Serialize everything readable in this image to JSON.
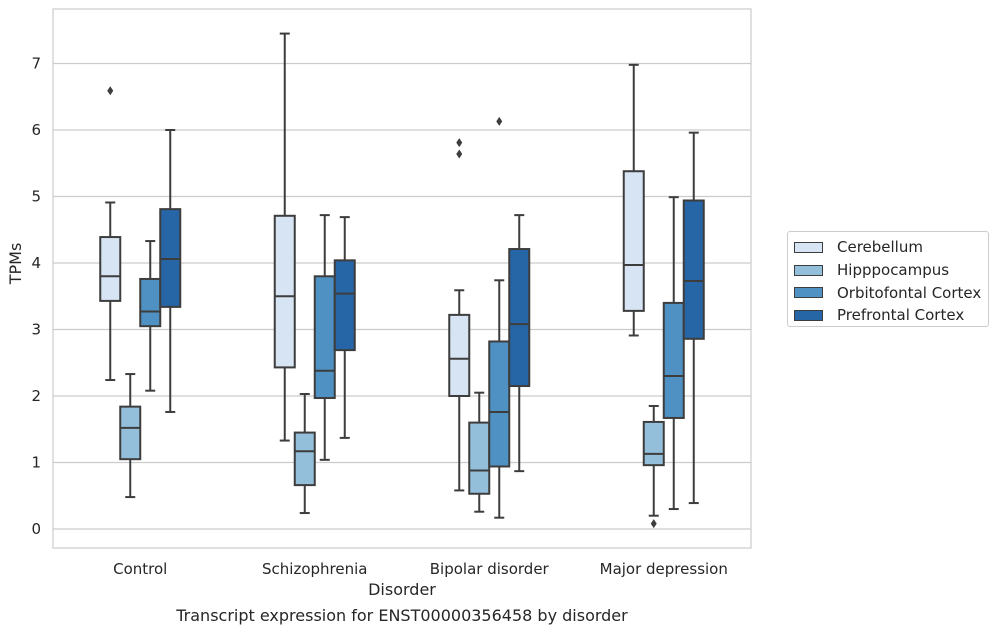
{
  "chart_data": {
    "type": "boxplot",
    "xlabel": "Disorder",
    "ylabel": "TPMs",
    "ylim": [
      -0.28,
      7.8
    ],
    "yticks": [
      0,
      1,
      2,
      3,
      4,
      5,
      6,
      7
    ],
    "grid": "horizontal",
    "legend_position": "right",
    "categories": [
      "Control",
      "Schizophrenia",
      "Bipolar disorder",
      "Major depression"
    ],
    "series": [
      {
        "name": "Cerebellum",
        "color": "#d6e4f3",
        "boxes": [
          {
            "whislo": 2.24,
            "q1": 3.43,
            "med": 3.8,
            "q3": 4.39,
            "whishi": 4.91,
            "fliers": [
              6.59
            ]
          },
          {
            "whislo": 1.33,
            "q1": 2.43,
            "med": 3.5,
            "q3": 4.71,
            "whishi": 7.45,
            "fliers": []
          },
          {
            "whislo": 0.58,
            "q1": 2.0,
            "med": 2.56,
            "q3": 3.22,
            "whishi": 3.59,
            "fliers": [
              5.64,
              5.81
            ]
          },
          {
            "whislo": 2.91,
            "q1": 3.28,
            "med": 3.97,
            "q3": 5.38,
            "whishi": 6.98,
            "fliers": []
          }
        ]
      },
      {
        "name": "Hipppocampus",
        "color": "#94bfdb",
        "boxes": [
          {
            "whislo": 0.48,
            "q1": 1.05,
            "med": 1.52,
            "q3": 1.84,
            "whishi": 2.33,
            "fliers": []
          },
          {
            "whislo": 0.24,
            "q1": 0.66,
            "med": 1.17,
            "q3": 1.45,
            "whishi": 2.03,
            "fliers": []
          },
          {
            "whislo": 0.26,
            "q1": 0.53,
            "med": 0.88,
            "q3": 1.6,
            "whishi": 2.05,
            "fliers": []
          },
          {
            "whislo": 0.2,
            "q1": 0.96,
            "med": 1.13,
            "q3": 1.61,
            "whishi": 1.85,
            "fliers": [
              0.08
            ]
          }
        ]
      },
      {
        "name": "Orbitofontal Cortex",
        "color": "#4f91c2",
        "boxes": [
          {
            "whislo": 2.08,
            "q1": 3.05,
            "med": 3.27,
            "q3": 3.76,
            "whishi": 4.33,
            "fliers": []
          },
          {
            "whislo": 1.04,
            "q1": 1.97,
            "med": 2.38,
            "q3": 3.8,
            "whishi": 4.72,
            "fliers": []
          },
          {
            "whislo": 0.17,
            "q1": 0.94,
            "med": 1.76,
            "q3": 2.82,
            "whishi": 3.74,
            "fliers": [
              6.13
            ]
          },
          {
            "whislo": 0.3,
            "q1": 1.67,
            "med": 2.3,
            "q3": 3.4,
            "whishi": 4.99,
            "fliers": []
          }
        ]
      },
      {
        "name": "Prefrontal Cortex",
        "color": "#2666a6",
        "boxes": [
          {
            "whislo": 1.76,
            "q1": 3.34,
            "med": 4.06,
            "q3": 4.81,
            "whishi": 6.0,
            "fliers": []
          },
          {
            "whislo": 1.37,
            "q1": 2.69,
            "med": 3.54,
            "q3": 4.04,
            "whishi": 4.69,
            "fliers": []
          },
          {
            "whislo": 0.87,
            "q1": 2.15,
            "med": 3.08,
            "q3": 4.21,
            "whishi": 4.72,
            "fliers": []
          },
          {
            "whislo": 0.39,
            "q1": 2.86,
            "med": 3.73,
            "q3": 4.94,
            "whishi": 5.96,
            "fliers": []
          }
        ]
      }
    ]
  },
  "caption": "Transcript expression for ENST00000356458 by disorder"
}
